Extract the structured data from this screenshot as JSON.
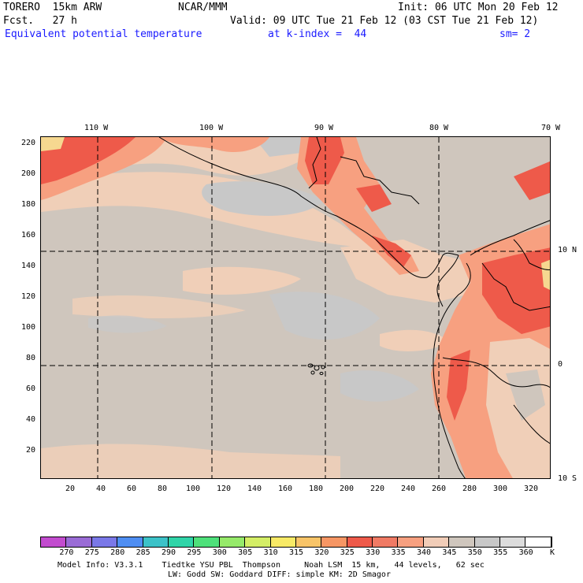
{
  "header": {
    "model": "TORERO  15km ARW",
    "org": "NCAR/MMM",
    "init": "Init: 06 UTC Mon 20 Feb 12",
    "fcst": "Fcst.   27 h",
    "valid": "Valid: 09 UTC Tue 21 Feb 12 (03 CST Tue 21 Feb 12)",
    "field": "Equivalent potential temperature",
    "level": "at k-index =  44",
    "smooth": "sm= 2"
  },
  "map": {
    "lon_labels": [
      "110 W",
      "100 W",
      "90 W",
      "80 W",
      "70 W"
    ],
    "lat_labels": [
      "10 N",
      "0",
      "10 S"
    ],
    "y_ticks": [
      "220",
      "200",
      "180",
      "160",
      "140",
      "120",
      "100",
      "80",
      "60",
      "40",
      "20"
    ],
    "x_ticks": [
      "20",
      "40",
      "60",
      "80",
      "100",
      "120",
      "140",
      "160",
      "180",
      "200",
      "220",
      "240",
      "260",
      "280",
      "300",
      "320"
    ],
    "background_color": "#cfc6bd",
    "ocean_light_color": "#f0cfb8",
    "ocean_gray_color": "#c8c8c8",
    "warm_color": "#f7a080",
    "hot_color": "#ee5a4a",
    "hottest_color": "#f6d890"
  },
  "colorbar": {
    "labels": [
      "270",
      "275",
      "280",
      "285",
      "290",
      "295",
      "300",
      "305",
      "310",
      "315",
      "320",
      "325",
      "330",
      "335",
      "340",
      "345",
      "350",
      "355",
      "360"
    ],
    "unit": "K",
    "colors": [
      "#c24ccf",
      "#9a6cd6",
      "#7a78e8",
      "#4f8ef2",
      "#3cc2c8",
      "#30d4a8",
      "#4ee07a",
      "#96ea6a",
      "#d4ee66",
      "#f8ea66",
      "#f8c468",
      "#f69664",
      "#ee5a4a",
      "#f07a64",
      "#f7a080",
      "#f1cdb8",
      "#cfc6bd",
      "#c8c8c8",
      "#dcdcdc",
      "#ffffff"
    ]
  },
  "footer": {
    "line1": "Model Info: V3.3.1    Tiedtke YSU PBL  Thompson     Noah LSM  15 km,   44 levels,   62 sec",
    "line2": "LW: Godd SW: Goddard DIFF: simple KM: 2D Smagor"
  }
}
